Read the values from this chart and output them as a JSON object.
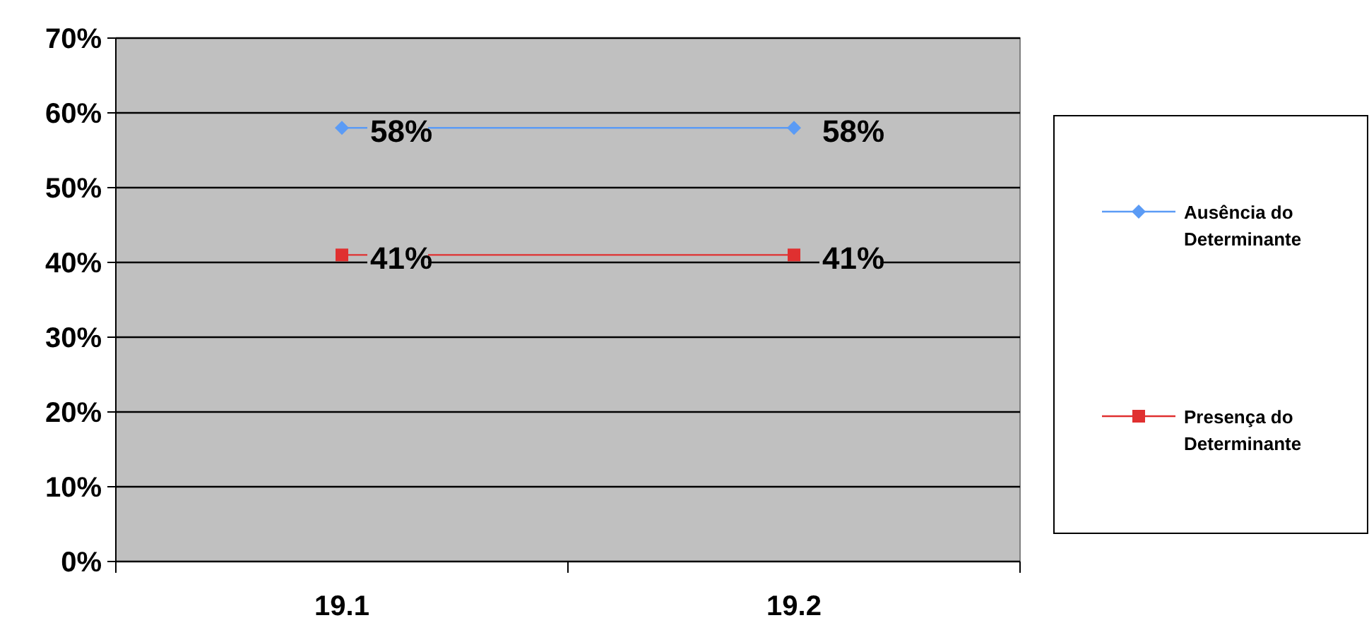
{
  "chart_data": {
    "type": "line",
    "categories": [
      "19.1",
      "19.2"
    ],
    "series": [
      {
        "name": "Ausência do Determinante",
        "color": "#5b9bf5",
        "marker": "diamond",
        "values": [
          58,
          58
        ],
        "value_labels": [
          "58%",
          "58%"
        ]
      },
      {
        "name": "Presença do Determinante",
        "color": "#e03030",
        "marker": "square",
        "values": [
          41,
          41
        ],
        "value_labels": [
          "41%",
          "41%"
        ]
      }
    ],
    "ylim": [
      0,
      70
    ],
    "yticks": [
      {
        "value": 0,
        "label": "0%"
      },
      {
        "value": 10,
        "label": "10%"
      },
      {
        "value": 20,
        "label": "20%"
      },
      {
        "value": 30,
        "label": "30%"
      },
      {
        "value": 40,
        "label": "40%"
      },
      {
        "value": 50,
        "label": "50%"
      },
      {
        "value": 60,
        "label": "60%"
      },
      {
        "value": 70,
        "label": "70%"
      }
    ],
    "grid": "y",
    "legend": "right"
  }
}
